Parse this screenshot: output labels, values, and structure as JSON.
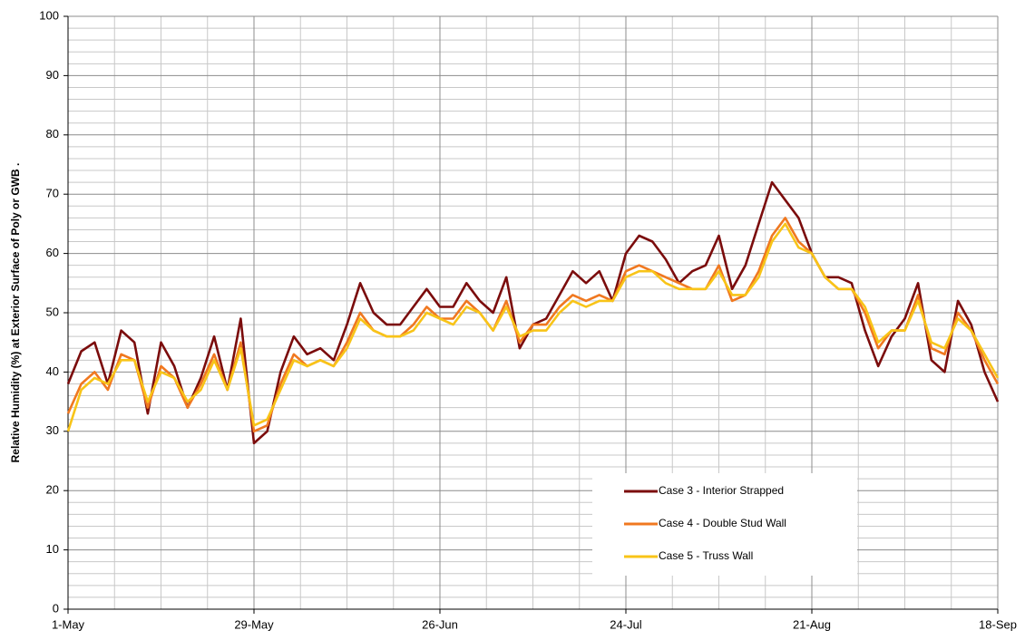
{
  "chart_data": {
    "type": "line",
    "y_label": "Relative Humidity  (%) at Exterior Surface of Poly or GWB .",
    "x": [
      "1-May",
      "3-May",
      "5-May",
      "7-May",
      "9-May",
      "11-May",
      "13-May",
      "15-May",
      "17-May",
      "19-May",
      "21-May",
      "23-May",
      "25-May",
      "27-May",
      "29-May",
      "31-May",
      "2-Jun",
      "4-Jun",
      "6-Jun",
      "8-Jun",
      "10-Jun",
      "12-Jun",
      "14-Jun",
      "16-Jun",
      "18-Jun",
      "20-Jun",
      "22-Jun",
      "24-Jun",
      "26-Jun",
      "28-Jun",
      "30-Jun",
      "2-Jul",
      "4-Jul",
      "6-Jul",
      "8-Jul",
      "10-Jul",
      "12-Jul",
      "14-Jul",
      "16-Jul",
      "18-Jul",
      "20-Jul",
      "22-Jul",
      "24-Jul",
      "26-Jul",
      "28-Jul",
      "30-Jul",
      "1-Aug",
      "3-Aug",
      "5-Aug",
      "7-Aug",
      "9-Aug",
      "11-Aug",
      "13-Aug",
      "15-Aug",
      "17-Aug",
      "19-Aug",
      "21-Aug",
      "23-Aug",
      "25-Aug",
      "27-Aug",
      "29-Aug",
      "31-Aug",
      "2-Sep",
      "4-Sep",
      "6-Sep",
      "8-Sep",
      "10-Sep",
      "12-Sep",
      "14-Sep",
      "16-Sep",
      "18-Sep"
    ],
    "series": [
      {
        "name": "Case 3 - Interior Strapped",
        "color": "#7b0c0c",
        "values": [
          38,
          43.5,
          45,
          38,
          47,
          45,
          33,
          45,
          41,
          34,
          39,
          46,
          37,
          49,
          28,
          30,
          40,
          46,
          43,
          44,
          42,
          48,
          55,
          50,
          48,
          48,
          51,
          54,
          51,
          51,
          55,
          52,
          50,
          56,
          44,
          48,
          49,
          53,
          57,
          55,
          57,
          52,
          60,
          63,
          62,
          59,
          55,
          57,
          58,
          63,
          54,
          58,
          65,
          72,
          69,
          66,
          60,
          56,
          56,
          55,
          47,
          41,
          46,
          49,
          55,
          42,
          40,
          52,
          48,
          40,
          35
        ]
      },
      {
        "name": "Case 4 - Double Stud Wall",
        "color": "#f07820",
        "values": [
          33,
          38,
          40,
          37,
          43,
          42,
          34,
          41,
          39,
          34,
          38,
          43,
          37,
          45,
          30,
          31,
          38,
          43,
          41,
          42,
          41,
          45,
          50,
          47,
          46,
          46,
          48,
          51,
          49,
          49,
          52,
          50,
          47,
          52,
          45,
          48,
          48,
          51,
          53,
          52,
          53,
          52,
          57,
          58,
          57,
          56,
          55,
          54,
          54,
          58,
          52,
          53,
          57,
          63,
          66,
          62,
          60,
          56,
          54,
          54,
          50,
          44,
          47,
          47,
          53,
          44,
          43,
          50,
          47,
          42,
          38
        ]
      },
      {
        "name": "Case 5 - Truss Wall",
        "color": "#f8c418",
        "values": [
          30,
          37,
          39,
          38,
          42,
          42,
          35,
          40,
          39,
          35,
          37,
          42,
          37,
          44,
          31,
          32,
          37,
          42,
          41,
          42,
          41,
          44,
          49,
          47,
          46,
          46,
          47,
          50,
          49,
          48,
          51,
          50,
          47,
          51,
          46,
          47,
          47,
          50,
          52,
          51,
          52,
          52,
          56,
          57,
          57,
          55,
          54,
          54,
          54,
          57,
          53,
          53,
          56,
          62,
          65,
          61,
          60,
          56,
          54,
          54,
          51,
          45,
          47,
          47,
          52,
          45,
          44,
          49,
          47,
          43,
          39
        ]
      }
    ],
    "xlim": [
      "1-May",
      "18-Sep"
    ],
    "xticks": [
      "1-May",
      "29-May",
      "26-Jun",
      "24-Jul",
      "21-Aug",
      "18-Sep"
    ],
    "ylim": [
      0,
      100
    ],
    "yticks": [
      0,
      10,
      20,
      30,
      40,
      50,
      60,
      70,
      80,
      90,
      100
    ],
    "grid": true,
    "legend": "lower right"
  }
}
